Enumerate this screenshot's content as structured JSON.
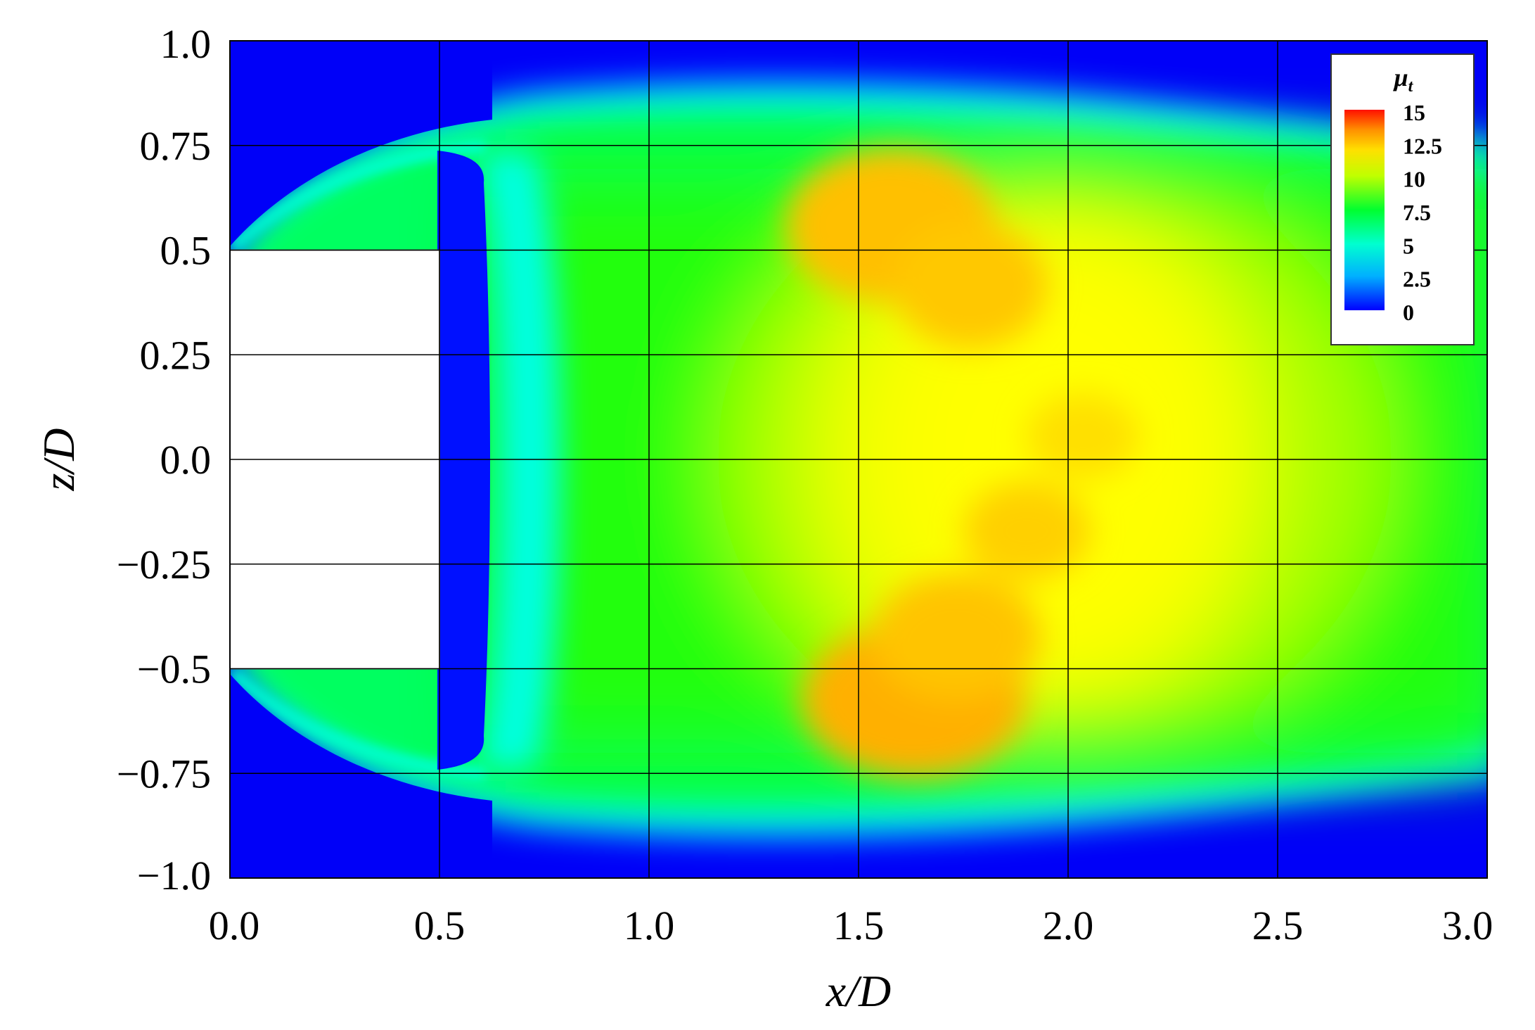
{
  "chart_data": {
    "type": "heatmap",
    "title": "",
    "xlabel": "x/D",
    "ylabel": "z/D",
    "xlim": [
      0.0,
      3.0
    ],
    "ylim": [
      -1.0,
      1.0
    ],
    "x_ticks": [
      "0.0",
      "0.5",
      "1.0",
      "1.5",
      "2.0",
      "2.5",
      "3.0"
    ],
    "x_tick_values": [
      0.0,
      0.5,
      1.0,
      1.5,
      2.0,
      2.5,
      3.0
    ],
    "y_ticks": [
      "1.0",
      "0.75",
      "0.5",
      "0.25",
      "0.0",
      "−0.25",
      "−0.5",
      "−0.75",
      "−1.0"
    ],
    "y_tick_values": [
      1.0,
      0.75,
      0.5,
      0.25,
      0.0,
      -0.25,
      -0.5,
      -0.75,
      -1.0
    ],
    "grid": true,
    "colorbar": {
      "title": "μ",
      "title_subscript": "t",
      "min": 0,
      "max": 15,
      "ticks": [
        "15",
        "12.5",
        "10",
        "7.5",
        "5",
        "2.5",
        "0"
      ],
      "tick_values": [
        15,
        12.5,
        10,
        7.5,
        5,
        2.5,
        0
      ],
      "placement": "top-right",
      "colormap": [
        "#0000ff",
        "#00b0ff",
        "#00ffff",
        "#00ff40",
        "#40ff00",
        "#ffff00",
        "#ffb000",
        "#ff6000",
        "#ff0000"
      ]
    },
    "body_region": {
      "x": [
        0.0,
        0.5
      ],
      "z": [
        -0.5,
        0.5
      ]
    },
    "field_features": [
      {
        "feature": "background",
        "x": [
          0.0,
          3.0
        ],
        "z": [
          -1.0,
          1.0
        ],
        "value": 0
      },
      {
        "feature": "wake",
        "x": [
          0.62,
          3.0
        ],
        "z": [
          -0.75,
          0.75
        ],
        "value": 8
      },
      {
        "feature": "shear-layer-upper",
        "x": [
          0.0,
          3.0
        ],
        "z": [
          0.5,
          0.88
        ],
        "value": 6
      },
      {
        "feature": "shear-layer-lower",
        "x": [
          0.0,
          3.0
        ],
        "z": [
          -0.88,
          -0.5
        ],
        "value": 6
      },
      {
        "feature": "peak-upper",
        "x": 1.62,
        "z": 0.55,
        "value": 12.5
      },
      {
        "feature": "peak-mid-upper",
        "x": 1.78,
        "z": 0.42,
        "value": 12
      },
      {
        "feature": "peak-lower",
        "x": 1.58,
        "z": -0.58,
        "value": 13
      },
      {
        "feature": "peak-center",
        "x": 1.9,
        "z": -0.15,
        "value": 11.5
      },
      {
        "feature": "recirculation-gap",
        "x": [
          0.5,
          0.62
        ],
        "z": [
          -0.72,
          0.72
        ],
        "value": 0
      }
    ]
  }
}
